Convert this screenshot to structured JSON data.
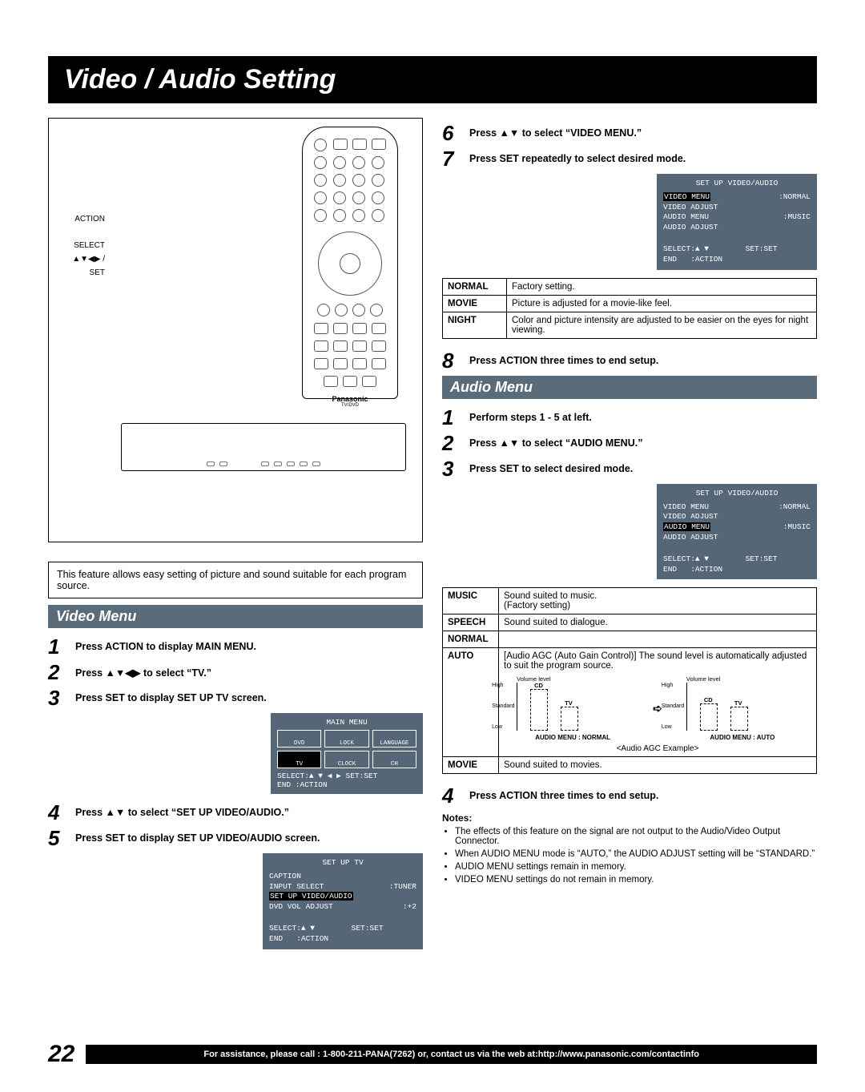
{
  "page": {
    "title": "Video / Audio Setting",
    "number": "22",
    "assist": "For assistance, please call : 1-800-211-PANA(7262) or, contact us via the web at:http://www.panasonic.com/contactinfo"
  },
  "remote": {
    "labels": [
      "ACTION",
      "SELECT",
      "▲▼◀▶ /",
      "SET"
    ],
    "brand": "Panasonic",
    "sub": "TV/DVD"
  },
  "intro": "This feature allows easy setting of picture and sound suitable for each program source.",
  "video_menu": {
    "header": "Video Menu",
    "steps": [
      {
        "n": "1",
        "t": "Press ACTION to display MAIN MENU."
      },
      {
        "n": "2",
        "t": "Press ▲▼◀▶ to select “TV.”"
      },
      {
        "n": "3",
        "t": "Press SET to display SET UP TV screen."
      },
      {
        "n": "4",
        "t": "Press ▲▼ to select “SET UP VIDEO/AUDIO.”"
      },
      {
        "n": "5",
        "t": "Press SET to display SET UP VIDEO/AUDIO screen."
      }
    ],
    "main_menu_osd": {
      "title": "MAIN MENU",
      "cells": [
        "DVD",
        "LOCK",
        "LANGUAGE",
        "TV",
        "CLOCK",
        "CH"
      ],
      "foot1": "SELECT:▲ ▼ ◀ ▶   SET:SET",
      "foot2": "END    :ACTION"
    },
    "setup_tv_osd": {
      "title": "SET UP TV",
      "lines": [
        {
          "l": "CAPTION",
          "r": ""
        },
        {
          "l": "INPUT SELECT",
          "r": ":TUNER"
        },
        {
          "l": "SET UP VIDEO/AUDIO",
          "r": "",
          "hl": true
        },
        {
          "l": "DVD VOL ADJUST",
          "r": ":+2"
        }
      ],
      "foot1": "SELECT:▲ ▼        SET:SET",
      "foot2": "END   :ACTION"
    }
  },
  "right": {
    "steps_top": [
      {
        "n": "6",
        "t": "Press ▲▼ to select “VIDEO MENU.”"
      },
      {
        "n": "7",
        "t": "Press SET repeatedly to select desired mode."
      }
    ],
    "video_osd": {
      "title": "SET UP VIDEO/AUDIO",
      "lines": [
        {
          "l": "VIDEO MENU",
          "r": ":NORMAL",
          "hl": true
        },
        {
          "l": "VIDEO ADJUST",
          "r": ""
        },
        {
          "l": "AUDIO MENU",
          "r": ":MUSIC"
        },
        {
          "l": "AUDIO ADJUST",
          "r": ""
        }
      ],
      "foot1": "SELECT:▲ ▼        SET:SET",
      "foot2": "END   :ACTION"
    },
    "video_modes": [
      {
        "m": "NORMAL",
        "d": "Factory setting."
      },
      {
        "m": "MOVIE",
        "d": "Picture is adjusted for a movie-like feel."
      },
      {
        "m": "NIGHT",
        "d": "Color and picture intensity are adjusted to be easier on the eyes for night viewing."
      }
    ],
    "step8": {
      "n": "8",
      "t": "Press ACTION three times to end setup."
    }
  },
  "audio_menu": {
    "header": "Audio Menu",
    "steps": [
      {
        "n": "1",
        "t": "Perform steps 1 - 5 at left."
      },
      {
        "n": "2",
        "t": "Press ▲▼ to select “AUDIO MENU.”"
      },
      {
        "n": "3",
        "t": "Press SET to select desired mode."
      }
    ],
    "audio_osd": {
      "title": "SET UP VIDEO/AUDIO",
      "lines": [
        {
          "l": "VIDEO MENU",
          "r": ":NORMAL"
        },
        {
          "l": "VIDEO ADJUST",
          "r": ""
        },
        {
          "l": "AUDIO MENU",
          "r": ":MUSIC",
          "hl": true
        },
        {
          "l": "AUDIO ADJUST",
          "r": ""
        }
      ],
      "foot1": "SELECT:▲ ▼        SET:SET",
      "foot2": "END   :ACTION"
    },
    "modes": [
      {
        "m": "MUSIC",
        "d": "Sound suited to music.\n(Factory setting)"
      },
      {
        "m": "SPEECH",
        "d": "Sound suited to dialogue."
      },
      {
        "m": "NORMAL",
        "d": ""
      },
      {
        "m": "AUTO",
        "d": "[Audio AGC (Auto Gain Control)] The sound level is automatically adjusted to suit the program source."
      },
      {
        "m": "MOVIE",
        "d": "Sound suited to movies."
      }
    ],
    "agc": {
      "vol_label": "Volume level",
      "ticks": [
        "High",
        "Standard",
        "Low"
      ],
      "bars_left": [
        "CD",
        "TV"
      ],
      "left_caption": "AUDIO MENU : NORMAL",
      "bars_right": [
        "CD",
        "TV"
      ],
      "right_caption": "AUDIO MENU : AUTO",
      "example": "<Audio AGC Example>"
    },
    "step4": {
      "n": "4",
      "t": "Press ACTION three times to end setup."
    }
  },
  "notes": {
    "header": "Notes:",
    "items": [
      "The effects of this feature on the signal are not output to the Audio/Video Output Connector.",
      "When AUDIO MENU mode is “AUTO,” the AUDIO ADJUST setting will be “STANDARD.”",
      "AUDIO MENU settings remain in memory.",
      "VIDEO MENU settings do not remain in memory."
    ]
  },
  "colors": {
    "section_bg": "#5a6b7a",
    "osd_bg": "#556677",
    "footer_bg": "#000000"
  }
}
